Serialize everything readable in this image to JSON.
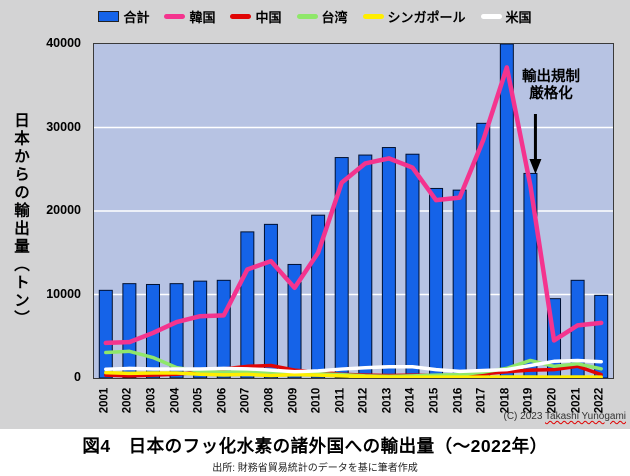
{
  "page": {
    "chart_bg": "#d3d3d4",
    "plot_bg": "#b7c3e3",
    "page_bg": "#ffffff"
  },
  "axes": {
    "y_title": "日本からの輸出量（トン）",
    "y_ticks": [
      {
        "value": 0,
        "label": "0"
      },
      {
        "value": 10000,
        "label": "10000"
      },
      {
        "value": 20000,
        "label": "20000"
      },
      {
        "value": 30000,
        "label": "30000"
      },
      {
        "value": 40000,
        "label": "40000"
      }
    ]
  },
  "annotation": {
    "line1": "輸出規制",
    "line2": "厳格化",
    "target_year": "2019"
  },
  "copyright": {
    "prefix": "(C) 2023 ",
    "name": "Takashi Yunogami"
  },
  "caption": {
    "title": "図4　日本のフッ化水素の諸外国への輸出量（～2022年）",
    "source": "出所: 財務省貿易統計のデータを基に筆者作成"
  },
  "chart_data": {
    "type": "bar",
    "subtype": "bar+line combo",
    "title": "",
    "xlabel": "",
    "ylabel": "日本からの輸出量（トン）",
    "ylim": [
      0,
      40000
    ],
    "gridlines": [
      10000,
      20000,
      30000
    ],
    "legend_position": "top",
    "categories": [
      "2001",
      "2002",
      "2003",
      "2004",
      "2005",
      "2006",
      "2007",
      "2008",
      "2009",
      "2010",
      "2011",
      "2012",
      "2013",
      "2014",
      "2015",
      "2016",
      "2017",
      "2018",
      "2019",
      "2020",
      "2021",
      "2022"
    ],
    "series": [
      {
        "key": "total",
        "name": "合計",
        "type": "bar",
        "color": "#1563e8",
        "values": [
          10500,
          11300,
          11200,
          11300,
          11600,
          11700,
          17500,
          18400,
          13600,
          19500,
          26400,
          26700,
          27600,
          26800,
          22700,
          22500,
          30500,
          40000,
          24500,
          9500,
          11700,
          9900
        ]
      },
      {
        "key": "korea",
        "name": "韓国",
        "type": "line",
        "color": "#f4348e",
        "line_width": 4.5,
        "values": [
          4200,
          4300,
          5400,
          6700,
          7400,
          7500,
          13000,
          14000,
          10800,
          15000,
          23400,
          25700,
          26300,
          25200,
          21300,
          21600,
          28500,
          37200,
          23000,
          4500,
          6300,
          6600
        ]
      },
      {
        "key": "china",
        "name": "中国",
        "type": "line",
        "color": "#e00505",
        "line_width": 3.5,
        "values": [
          350,
          250,
          350,
          450,
          700,
          1100,
          1400,
          1500,
          950,
          700,
          450,
          350,
          300,
          350,
          300,
          300,
          500,
          750,
          950,
          1000,
          1400,
          400
        ]
      },
      {
        "key": "taiwan",
        "name": "台湾",
        "type": "line",
        "color": "#8fe76a",
        "line_width": 3.5,
        "values": [
          3050,
          3200,
          2450,
          1250,
          800,
          700,
          750,
          700,
          600,
          500,
          400,
          250,
          200,
          250,
          350,
          400,
          700,
          1150,
          2100,
          1400,
          1700,
          1100
        ]
      },
      {
        "key": "singapore",
        "name": "シンガポール",
        "type": "line",
        "color": "#ffee00",
        "line_width": 3.5,
        "values": [
          650,
          550,
          600,
          600,
          450,
          380,
          430,
          300,
          400,
          350,
          250,
          180,
          100,
          100,
          100,
          100,
          100,
          120,
          120,
          100,
          120,
          100
        ]
      },
      {
        "key": "usa",
        "name": "米国",
        "type": "line",
        "color": "#ffffff",
        "line_width": 3.5,
        "values": [
          1050,
          1150,
          1080,
          1080,
          1080,
          1150,
          1100,
          950,
          750,
          850,
          1070,
          1230,
          1350,
          1350,
          1000,
          800,
          900,
          1000,
          1500,
          2000,
          2100,
          1950
        ]
      }
    ]
  }
}
